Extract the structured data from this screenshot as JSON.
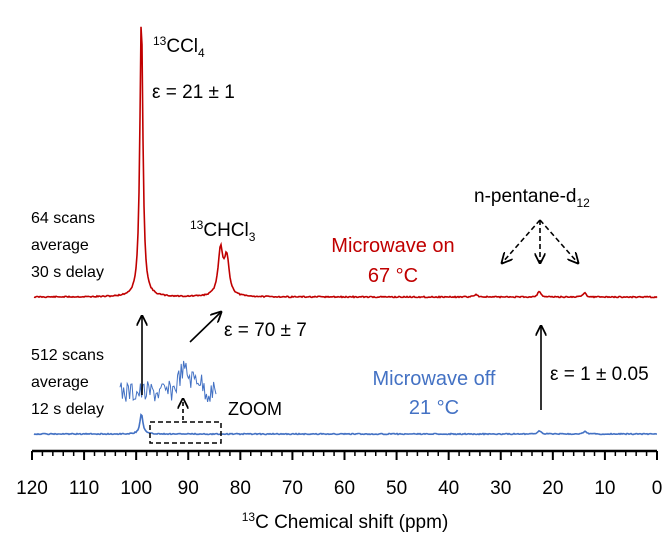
{
  "chart_data": {
    "type": "line",
    "xlabel": {
      "sup": "13",
      "text": "C Chemical shift (ppm)"
    },
    "x_ticks": [
      "120",
      "110",
      "100",
      "90",
      "80",
      "70",
      "60",
      "50",
      "40",
      "30",
      "20",
      "10",
      "0"
    ],
    "xlim": [
      120,
      0
    ],
    "x_reversed": true,
    "series": [
      {
        "name": "Microwave on",
        "color": "#c00000",
        "baseline": 1.0,
        "peaks": [
          {
            "x": 99.0,
            "height": 7.6,
            "width": 0.35
          },
          {
            "x": 83.8,
            "height": 1.25,
            "width": 0.55
          },
          {
            "x": 82.6,
            "height": 1.0,
            "width": 0.55
          },
          {
            "x": 34.8,
            "height": 0.07,
            "width": 0.4
          },
          {
            "x": 22.6,
            "height": 0.16,
            "width": 0.35
          },
          {
            "x": 13.9,
            "height": 0.12,
            "width": 0.35
          }
        ]
      },
      {
        "name": "Microwave off",
        "color": "#4472c4",
        "baseline": 0.0,
        "peaks": [
          {
            "x": 99.0,
            "height": 0.55,
            "width": 0.35
          },
          {
            "x": 22.6,
            "height": 0.09,
            "width": 0.35
          },
          {
            "x": 13.9,
            "height": 0.07,
            "width": 0.35
          }
        ]
      },
      {
        "name": "ZOOM",
        "color": "#4472c4"
      }
    ],
    "annotations": {
      "ccl4": {
        "sup": "13",
        "main": "CCl",
        "sub": "4"
      },
      "eps_ccl4": "ε = 21 ± 1",
      "chcl3": {
        "sup": "13",
        "main": "CHCl",
        "sub": "3"
      },
      "eps_chcl3": "ε = 70 ± 7",
      "pentane": {
        "main": "n-pentane-d",
        "sub": "12"
      },
      "eps_pentane": "ε = 1 ± 0.05",
      "on_line1": "64 scans",
      "on_line2": "average",
      "on_line3": "30 s delay",
      "off_line1": "512 scans",
      "off_line2": "average",
      "off_line3": "12 s delay",
      "mw_on_label": "Microwave on",
      "mw_on_temp": "67 °C",
      "mw_off_label": "Microwave off",
      "mw_off_temp": "21 °C",
      "zoom": "ZOOM"
    }
  }
}
